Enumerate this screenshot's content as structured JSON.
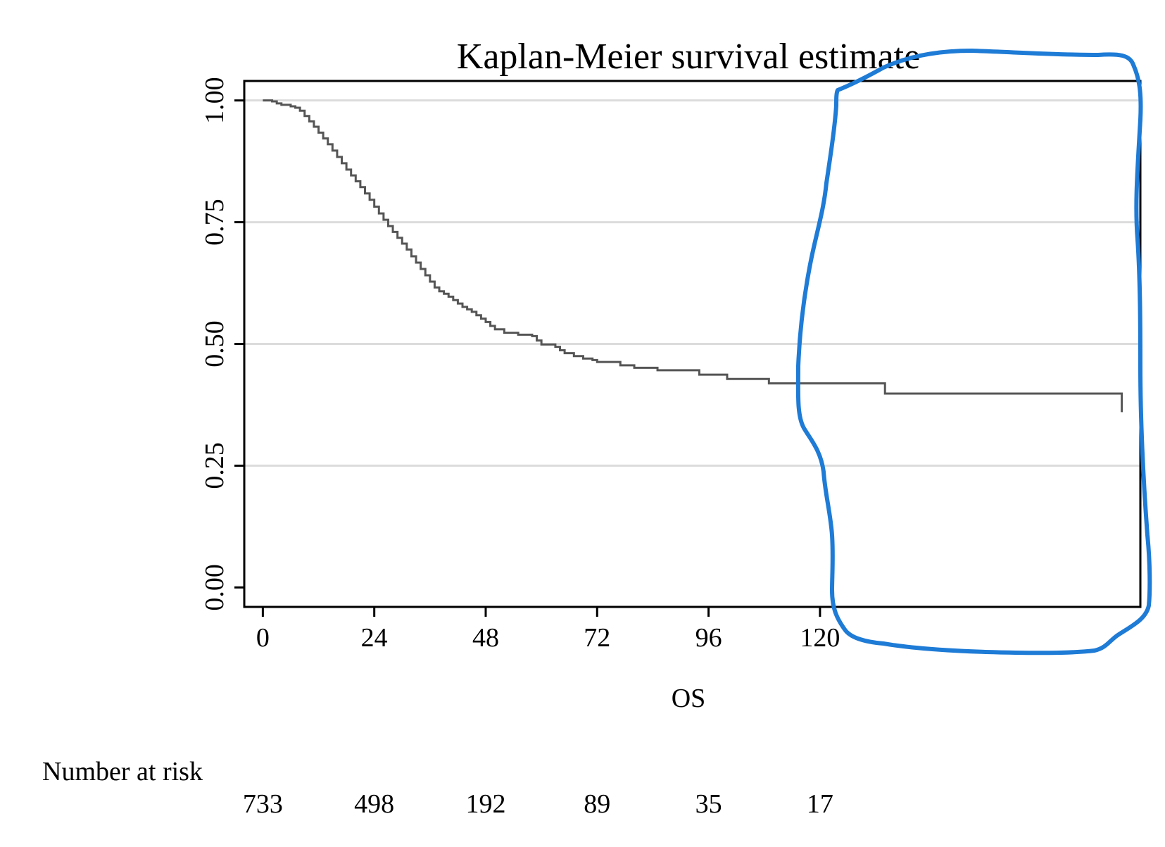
{
  "chart_data": {
    "type": "line",
    "subtype": "kaplan-meier step",
    "title": "Kaplan-Meier survival estimate",
    "xlabel": "OS",
    "ylabel": "",
    "xlim": [
      -4,
      189
    ],
    "ylim": [
      -0.04,
      1.04
    ],
    "x_ticks": [
      0,
      24,
      48,
      72,
      96,
      120
    ],
    "x_tick_labels": [
      "0",
      "24",
      "48",
      "72",
      "96",
      "120"
    ],
    "y_ticks": [
      0.0,
      0.25,
      0.5,
      0.75,
      1.0
    ],
    "y_tick_labels": [
      "0.00",
      "0.25",
      "0.50",
      "0.75",
      "1.00"
    ],
    "grid": "horizontal",
    "line_color": "#555555",
    "series": [
      {
        "x": [
          0,
          2,
          3,
          4,
          6,
          7,
          8,
          9,
          10,
          11,
          12,
          13,
          14,
          15,
          16,
          17,
          18,
          19,
          20,
          21,
          22,
          23,
          24,
          25,
          26,
          27,
          28,
          29,
          30,
          31,
          32,
          33,
          34,
          35,
          36,
          37,
          38,
          39,
          40,
          41,
          42,
          43,
          44,
          45,
          46,
          47,
          48,
          49,
          50,
          52,
          55,
          58,
          59,
          60,
          63,
          64,
          65,
          67,
          69,
          71,
          72,
          77,
          80,
          85,
          94,
          100,
          109,
          134,
          185
        ],
        "y": [
          1.0,
          0.998,
          0.994,
          0.991,
          0.988,
          0.985,
          0.979,
          0.968,
          0.957,
          0.946,
          0.934,
          0.922,
          0.91,
          0.897,
          0.884,
          0.871,
          0.858,
          0.846,
          0.834,
          0.822,
          0.809,
          0.796,
          0.782,
          0.768,
          0.755,
          0.742,
          0.73,
          0.718,
          0.706,
          0.694,
          0.68,
          0.667,
          0.654,
          0.641,
          0.628,
          0.616,
          0.608,
          0.603,
          0.597,
          0.59,
          0.583,
          0.576,
          0.571,
          0.566,
          0.559,
          0.552,
          0.545,
          0.537,
          0.53,
          0.523,
          0.519,
          0.516,
          0.507,
          0.499,
          0.494,
          0.487,
          0.481,
          0.475,
          0.47,
          0.467,
          0.463,
          0.456,
          0.451,
          0.446,
          0.437,
          0.428,
          0.419,
          0.398,
          0.36
        ]
      }
    ],
    "risk_table": {
      "heading": "Number at risk",
      "times": [
        0,
        24,
        48,
        72,
        96,
        120
      ],
      "counts": [
        "733",
        "498",
        "192",
        "89",
        "35",
        "17"
      ]
    },
    "annotation_color": "#1e7bd6"
  }
}
